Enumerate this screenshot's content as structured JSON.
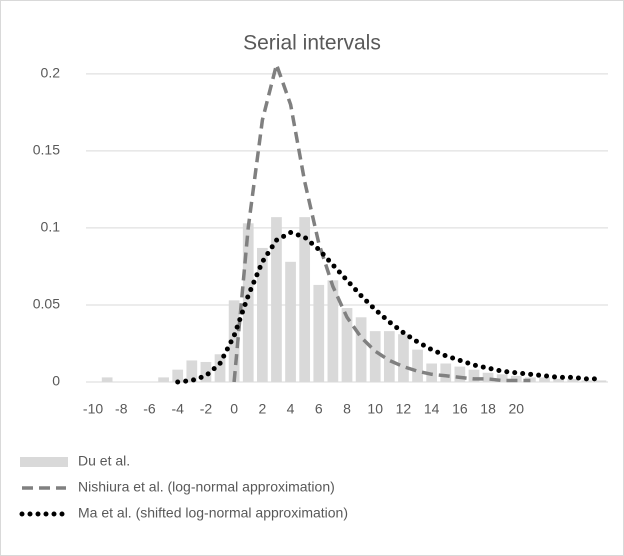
{
  "chart_data": {
    "type": "bar",
    "title": "Serial intervals",
    "categories": [
      "-10",
      null,
      "-8",
      null,
      "-6",
      null,
      "-4",
      null,
      "-2",
      null,
      "0",
      null,
      "2",
      null,
      "4",
      null,
      "6",
      null,
      "8",
      null,
      "10",
      null,
      "12",
      null,
      "14",
      null,
      "16",
      null,
      "18",
      null,
      "20",
      null,
      null,
      null,
      null,
      null,
      null
    ],
    "ylim": [
      0,
      0.22
    ],
    "yticks": [
      0,
      0.05,
      0.1,
      0.15,
      0.2
    ],
    "grid": true,
    "legend": "bottom",
    "series": [
      {
        "name": "Du et al.",
        "type": "bar",
        "color": "#d9d9d9",
        "values": [
          0,
          0.003,
          0,
          0,
          0,
          0.003,
          0.008,
          0.014,
          0.013,
          0.018,
          0.053,
          0.103,
          0.087,
          0.107,
          0.078,
          0.107,
          0.063,
          0.066,
          0.048,
          0.042,
          0.033,
          0.033,
          0.031,
          0.021,
          0.012,
          0.012,
          0.01,
          0.008,
          0.006,
          0.005,
          0.004,
          0.003,
          0.003,
          0.002,
          0.002,
          0.001,
          0.001
        ]
      },
      {
        "name": "Nishiura et al. (log-normal approximation)",
        "type": "line",
        "style": "dashed",
        "color": "#808080",
        "values": [
          null,
          null,
          null,
          null,
          null,
          null,
          null,
          null,
          null,
          null,
          0,
          0.1,
          0.17,
          0.206,
          0.18,
          0.13,
          0.09,
          0.062,
          0.042,
          0.029,
          0.02,
          0.014,
          0.01,
          0.007,
          0.005,
          0.004,
          0.003,
          0.002,
          0.002,
          0.001,
          0.001,
          0.001,
          null,
          null,
          null,
          null,
          null
        ]
      },
      {
        "name": "Ma et al. (shifted log-normal approximation)",
        "type": "line",
        "style": "dotted",
        "color": "#000000",
        "values": [
          null,
          null,
          null,
          null,
          null,
          null,
          0,
          0.001,
          0.004,
          0.012,
          0.03,
          0.056,
          0.078,
          0.092,
          0.097,
          0.094,
          0.086,
          0.076,
          0.066,
          0.056,
          0.047,
          0.039,
          0.032,
          0.026,
          0.021,
          0.017,
          0.014,
          0.011,
          0.009,
          0.007,
          0.006,
          0.005,
          0.004,
          0.003,
          0.003,
          0.002,
          0.002
        ]
      }
    ]
  }
}
